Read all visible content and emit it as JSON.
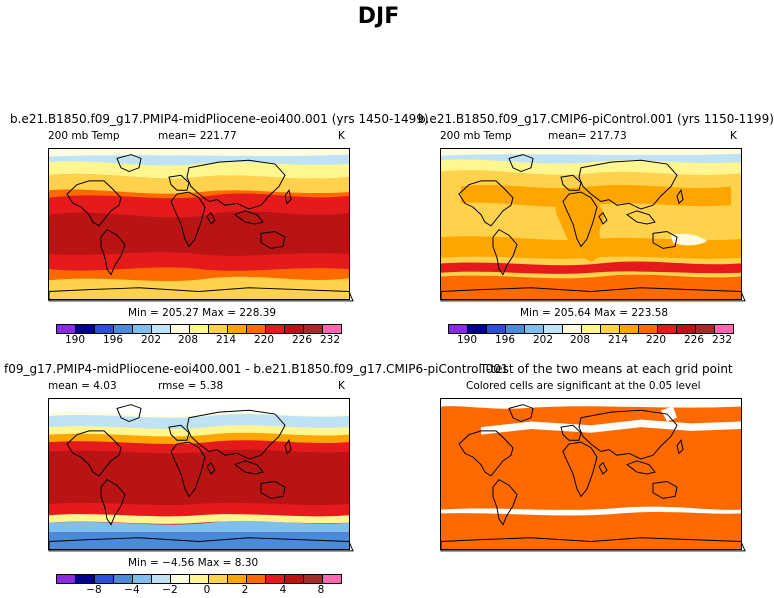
{
  "figure_title": "DJF",
  "legend_colors": [
    "#8a2be2",
    "#00008b",
    "#2b50d6",
    "#4a8ad8",
    "#7fbff0",
    "#bfe3f5",
    "#fffde0",
    "#fff68f",
    "#ffd24d",
    "#ffa500",
    "#ff6a00",
    "#e41a1c",
    "#b81414",
    "#a52a2a",
    "#ff69b4"
  ],
  "panels": {
    "top_left": {
      "case_title": "b.e21.B1850.f09_g17.PMIP4-midPliocene-eoi400.001 (yrs 1450-1499)",
      "variable": "200 mb Temp",
      "mean_label": "mean= 221.77",
      "units": "K",
      "minmax": "Min = 205.27 Max = 228.39",
      "ticks": [
        "190",
        "196",
        "202",
        "208",
        "214",
        "220",
        "226",
        "232"
      ]
    },
    "top_right": {
      "case_title": "b.e21.B1850.f09_g17.CMIP6-piControl.001 (yrs 1150-1199)",
      "variable": "200 mb Temp",
      "mean_label": "mean= 217.73",
      "units": "K",
      "minmax": "Min = 205.64 Max = 223.58",
      "ticks": [
        "190",
        "196",
        "202",
        "208",
        "214",
        "220",
        "226",
        "232"
      ]
    },
    "bottom_left": {
      "case_title": "f09_g17.PMIP4-midPliocene-eoi400.001 - b.e21.B1850.f09_g17.CMIP6-piControl.001",
      "mean_label": "mean =   4.03",
      "rmse_label": "rmse =   5.38",
      "units": "K",
      "minmax": "Min = −4.56 Max =   8.30",
      "ticks": [
        "−8",
        "−4",
        "−2",
        "0",
        "2",
        "4",
        "8"
      ]
    },
    "bottom_right": {
      "case_title": "T-test of the two means at each grid point",
      "subtitle": "Colored cells are significant at the 0.05 level"
    }
  }
}
